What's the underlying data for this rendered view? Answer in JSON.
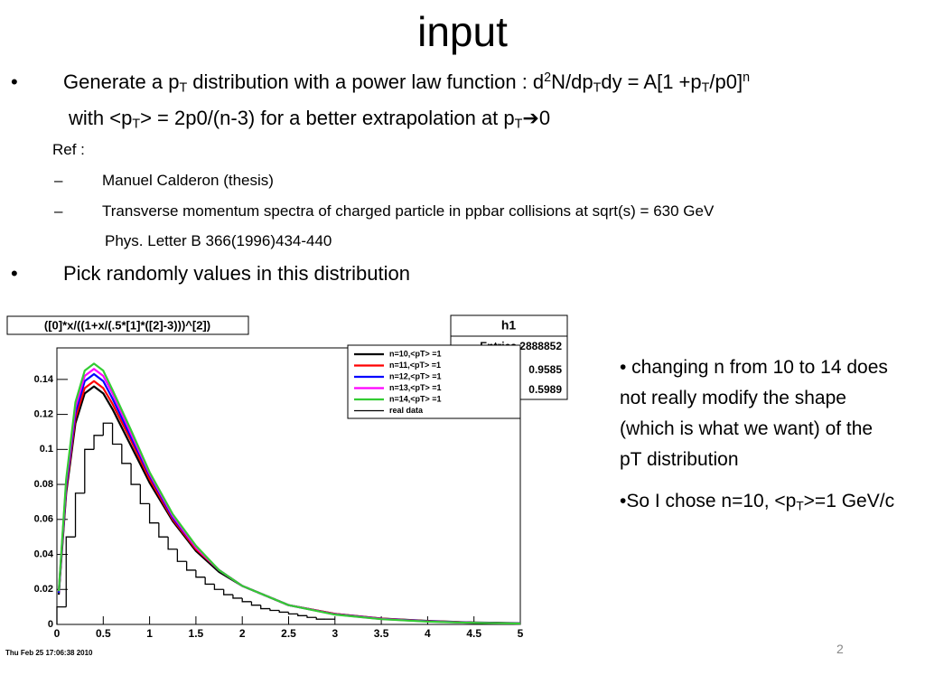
{
  "slide": {
    "title": "input",
    "lines": [
      {
        "marker": "•",
        "runs": [
          {
            "text": "Generate a p"
          },
          {
            "text": "T",
            "sub": true
          },
          {
            "text": " distribution with a power law function : d"
          },
          {
            "text": "2",
            "sup": true
          },
          {
            "text": "N/dp"
          },
          {
            "text": "T",
            "sub": true
          },
          {
            "text": "dy = A[1 +p"
          },
          {
            "text": "T",
            "sub": true
          },
          {
            "text": "/p0]"
          },
          {
            "text": "n",
            "sup": true
          }
        ]
      },
      {
        "runs": [
          {
            "text": " with <p"
          },
          {
            "text": "T",
            "sub": true
          },
          {
            "text": "> = 2p0/(n-3) for a better extrapolation at p"
          },
          {
            "text": "T",
            "sub": true
          },
          {
            "text": "➔0"
          }
        ]
      },
      {
        "runs": [
          {
            "text": "Ref :"
          }
        ]
      },
      {
        "marker": "–",
        "runs": [
          {
            "text": "Manuel Calderon (thesis)"
          }
        ]
      },
      {
        "marker": "–",
        "runs": [
          {
            "text": "Transverse momentum spectra of charged particle in ppbar collisions at sqrt(s) = 630 GeV"
          }
        ]
      },
      {
        "runs": [
          {
            "text": "Phys. Letter B 366(1996)434-440"
          }
        ]
      },
      {
        "marker": "•",
        "runs": [
          {
            "text": "Pick randomly values in this distribution"
          }
        ]
      }
    ],
    "side_text": [
      {
        "runs": [
          {
            "text": "• changing n from 10 to 14 does not really modify the shape (which is what we want) of the pT distribution"
          }
        ]
      },
      {
        "runs": [
          {
            "text": "•So I chose n=10, <p"
          },
          {
            "text": "T",
            "sub": true
          },
          {
            "text": ">=1 GeV/c"
          }
        ]
      }
    ],
    "page_number": "2"
  },
  "chart_data": {
    "type": "line",
    "title": "([0]*x/((1+x/(.5*[1]*([2]-3)))^[2])",
    "stats": {
      "name": "h1",
      "entries": "Entries 2888852",
      "mean": "0.9585",
      "rms": "0.5989"
    },
    "timestamp": "Thu Feb 25 17:06:38 2010",
    "x": [
      0.02,
      0.1,
      0.2,
      0.3,
      0.4,
      0.5,
      0.6,
      0.8,
      1,
      1.25,
      1.5,
      1.75,
      2,
      2.5,
      3,
      3.5,
      4,
      4.5,
      5
    ],
    "series": [
      {
        "name": "n=10,<pT> =1",
        "color": "#000000",
        "values": [
          0.017,
          0.075,
          0.115,
          0.132,
          0.136,
          0.132,
          0.123,
          0.102,
          0.081,
          0.059,
          0.042,
          0.03,
          0.022,
          0.011,
          0.006,
          0.0034,
          0.002,
          0.0011,
          0.0007
        ]
      },
      {
        "name": "n=11,<pT> =1",
        "color": "#ff0000",
        "values": [
          0.018,
          0.077,
          0.118,
          0.135,
          0.139,
          0.135,
          0.126,
          0.105,
          0.083,
          0.06,
          0.043,
          0.031,
          0.022,
          0.011,
          0.006,
          0.0033,
          0.0019,
          0.001,
          0.0006
        ]
      },
      {
        "name": "n=12,<pT> =1",
        "color": "#0000ff",
        "values": [
          0.018,
          0.079,
          0.121,
          0.139,
          0.143,
          0.139,
          0.129,
          0.107,
          0.085,
          0.061,
          0.044,
          0.031,
          0.022,
          0.011,
          0.0058,
          0.0032,
          0.0018,
          0.001,
          0.0006
        ]
      },
      {
        "name": "n=13,<pT> =1",
        "color": "#ff00ff",
        "values": [
          0.019,
          0.081,
          0.124,
          0.142,
          0.146,
          0.142,
          0.132,
          0.109,
          0.086,
          0.062,
          0.044,
          0.031,
          0.022,
          0.011,
          0.0057,
          0.0031,
          0.0017,
          0.0009,
          0.0005
        ]
      },
      {
        "name": "n=14,<pT> =1",
        "color": "#33cc33",
        "values": [
          0.019,
          0.083,
          0.127,
          0.145,
          0.149,
          0.145,
          0.134,
          0.111,
          0.087,
          0.063,
          0.045,
          0.031,
          0.022,
          0.011,
          0.0056,
          0.003,
          0.0016,
          0.0009,
          0.0005
        ]
      }
    ],
    "histogram": {
      "name": "real data",
      "color": "#000000",
      "bins": [
        0,
        0.1,
        0.2,
        0.3,
        0.4,
        0.5,
        0.6,
        0.7,
        0.8,
        0.9,
        1,
        1.1,
        1.2,
        1.3,
        1.4,
        1.5,
        1.6,
        1.7,
        1.8,
        1.9,
        2,
        2.1,
        2.2,
        2.3,
        2.4,
        2.5,
        2.6,
        2.7,
        2.8,
        2.9,
        3
      ],
      "counts": [
        0.01,
        0.05,
        0.075,
        0.1,
        0.108,
        0.115,
        0.103,
        0.092,
        0.08,
        0.069,
        0.058,
        0.05,
        0.043,
        0.036,
        0.031,
        0.027,
        0.023,
        0.02,
        0.017,
        0.015,
        0.013,
        0.011,
        0.009,
        0.008,
        0.007,
        0.006,
        0.005,
        0.004,
        0.003,
        0.003
      ]
    },
    "xlim": [
      0,
      5
    ],
    "ylim": [
      0,
      0.158
    ],
    "xticks": [
      0,
      0.5,
      1,
      1.5,
      2,
      2.5,
      3,
      3.5,
      4,
      4.5,
      5
    ],
    "yticks": [
      0,
      0.02,
      0.04,
      0.06,
      0.08,
      0.1,
      0.12,
      0.14
    ]
  }
}
